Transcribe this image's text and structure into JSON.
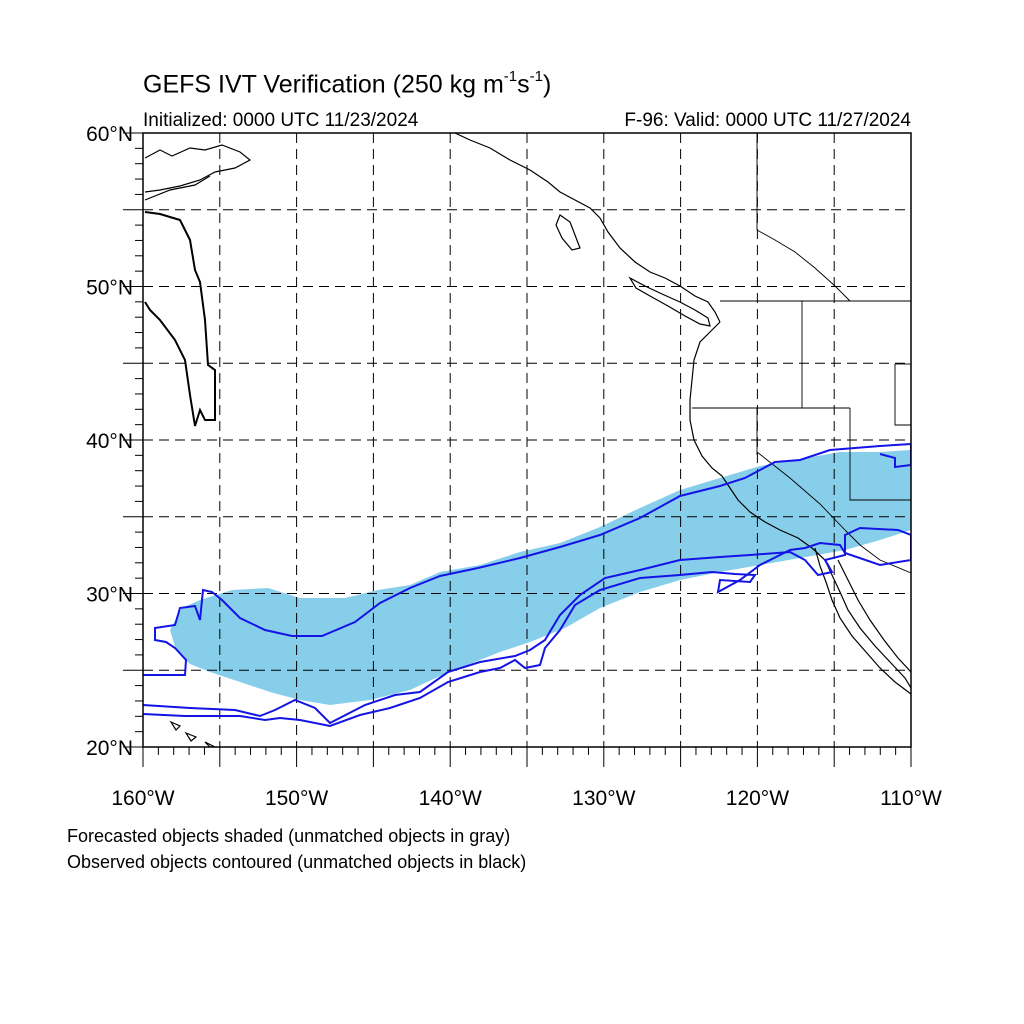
{
  "title": {
    "main": "GEFS IVT Verification (250 kg m",
    "exp1": "-1",
    "mid": "s",
    "exp2": "-1",
    "close": ")"
  },
  "init_text": "Initialized: 0000 UTC 11/23/2024",
  "valid_text": "F-96: Valid: 0000 UTC 11/27/2024",
  "footnotes": [
    "Forecasted objects shaded (unmatched objects in gray)",
    "Observed objects contoured (unmatched objects in black)"
  ],
  "map": {
    "projection": "cylindrical equidistant",
    "lon_range": [
      -160,
      -110
    ],
    "lat_range": [
      20,
      60
    ],
    "lat_labels": [
      {
        "lat": 60,
        "text": "60°N"
      },
      {
        "lat": 50,
        "text": "50°N"
      },
      {
        "lat": 40,
        "text": "40°N"
      },
      {
        "lat": 30,
        "text": "30°N"
      },
      {
        "lat": 20,
        "text": "20°N"
      }
    ],
    "lon_labels": [
      {
        "lon": -160,
        "text": "160°W"
      },
      {
        "lon": -150,
        "text": "150°W"
      },
      {
        "lon": -140,
        "text": "140°W"
      },
      {
        "lon": -130,
        "text": "130°W"
      },
      {
        "lon": -120,
        "text": "120°W"
      },
      {
        "lon": -110,
        "text": "110°W"
      }
    ],
    "gridlines_dashed": true,
    "grid_step_deg": 5,
    "colors": {
      "forecast_fill": "#87ceeb",
      "observed_contour": "#1414e6",
      "unmatched_observed_contour": "#000000",
      "coastline": "#000000"
    }
  }
}
